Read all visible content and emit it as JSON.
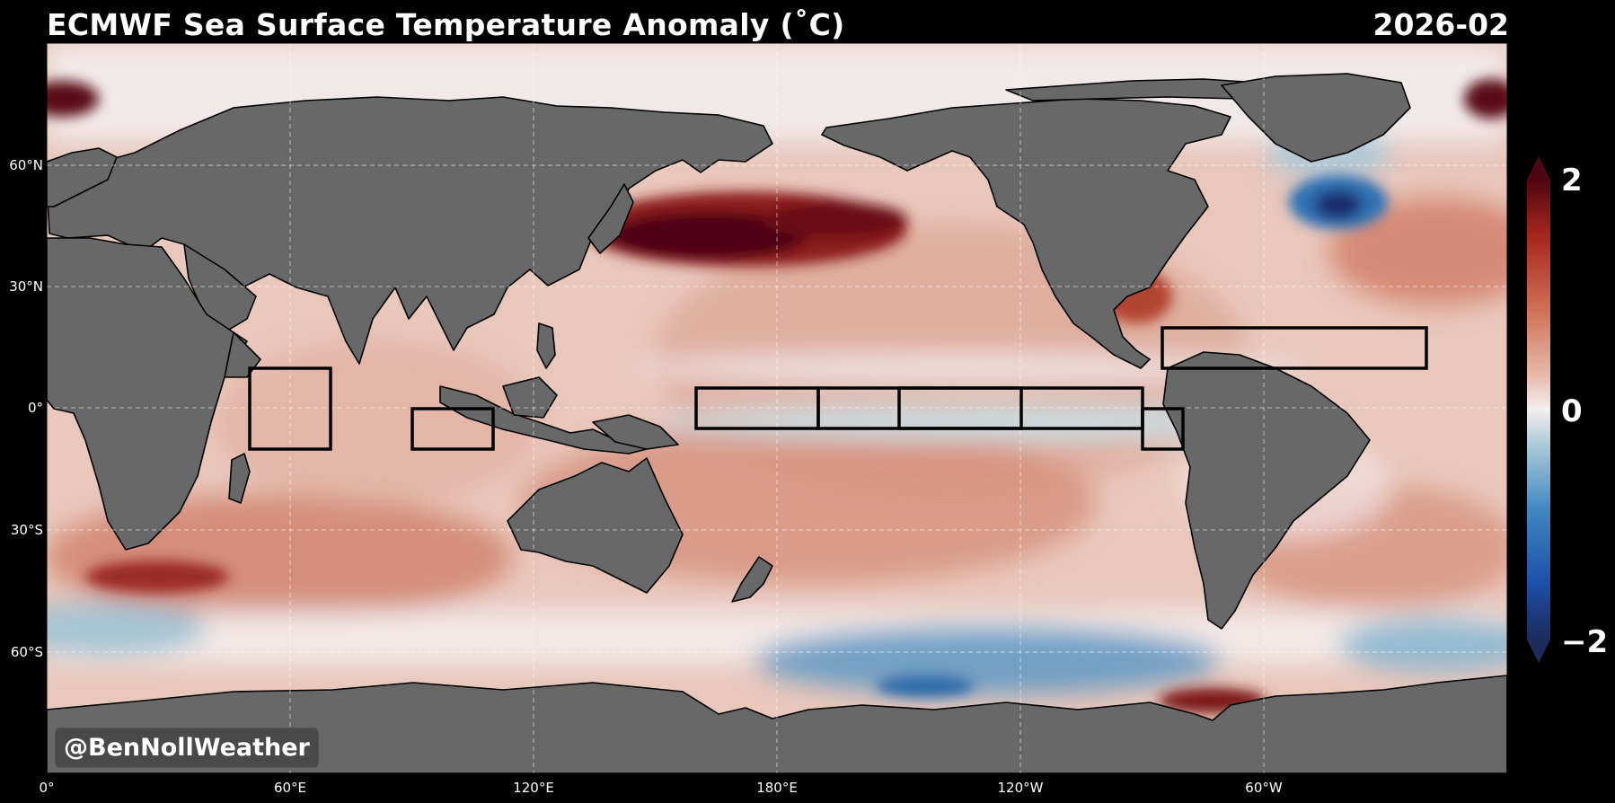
{
  "header": {
    "title": "ECMWF Sea Surface Temperature Anomaly (˚C)",
    "date": "2026-02"
  },
  "map": {
    "projection": "Plate Carree, central longitude 180",
    "lat_labels": [
      "60°N",
      "30°N",
      "0°",
      "30°S",
      "60°S"
    ],
    "lon_labels": [
      "0°",
      "60°E",
      "120°E",
      "180°E",
      "120°W",
      "60°W"
    ],
    "monitoring_boxes": [
      "western-indian-ocean",
      "eastern-indian-ocean",
      "nino-4",
      "nino-3-4",
      "nino-3",
      "nino-1-2",
      "main-development-region-atlantic"
    ],
    "land_color": "#686868",
    "gridline_style": "dashed-white"
  },
  "colorbar": {
    "max_label": "2",
    "mid_label": "0",
    "min_label": "−2",
    "range": [
      -2,
      2
    ],
    "units": "˚C",
    "colors": [
      "#1b2b5a",
      "#1d4fa8",
      "#3f86c2",
      "#a9c9d8",
      "#f3eeee",
      "#e6b7a5",
      "#cf6f55",
      "#a5261c",
      "#4e0612"
    ]
  },
  "credit": "@BenNollWeather"
}
